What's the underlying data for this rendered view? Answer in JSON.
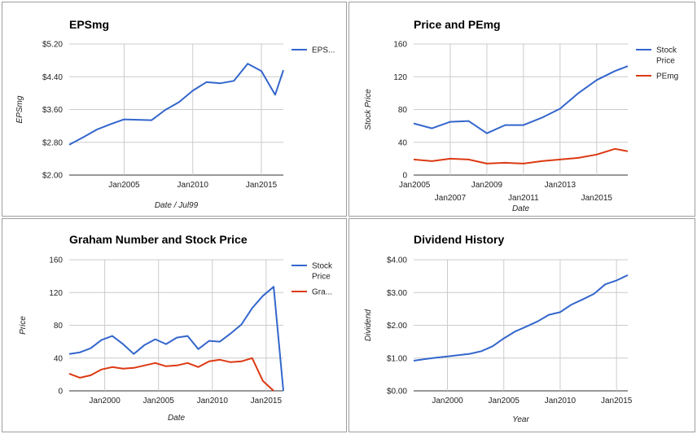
{
  "colors": {
    "blue": "#3366cc",
    "red": "#dc3912",
    "grid": "#cccccc",
    "border": "#9e9e9e"
  },
  "chart_data": [
    {
      "id": "eps",
      "type": "line",
      "title": "EPSmg",
      "xlabel": "Date / Jul99",
      "ylabel": "EPSmg",
      "ylim": [
        2.0,
        5.2
      ],
      "yticks": [
        2.0,
        2.8,
        3.6,
        4.4,
        5.2
      ],
      "ytick_labels": [
        "$2.00",
        "$2.80",
        "$3.60",
        "$4.40",
        "$5.20"
      ],
      "xlim": [
        2001.0,
        2016.6
      ],
      "xticks": [
        {
          "x": 2005,
          "label": "Jan2005",
          "row": 0
        },
        {
          "x": 2010,
          "label": "Jan2010",
          "row": 0
        },
        {
          "x": 2015,
          "label": "Jan2015",
          "row": 0
        }
      ],
      "legend": "right",
      "series": [
        {
          "name": "EPS...",
          "color": "#3366cc",
          "x": [
            2001,
            2002,
            2003,
            2004,
            2005,
            2006,
            2007,
            2008,
            2009,
            2010,
            2011,
            2012,
            2013,
            2014,
            2015,
            2016,
            2016.6
          ],
          "y": [
            2.74,
            2.92,
            3.11,
            3.24,
            3.36,
            3.35,
            3.34,
            3.59,
            3.78,
            4.06,
            4.27,
            4.24,
            4.3,
            4.72,
            4.54,
            3.96,
            4.56
          ]
        }
      ]
    },
    {
      "id": "pe",
      "type": "line",
      "title": "Price and PEmg",
      "xlabel": "Date",
      "ylabel": "Stock Price",
      "ylim": [
        0,
        160
      ],
      "yticks": [
        0,
        40,
        80,
        120,
        160
      ],
      "ytick_labels": [
        "0",
        "40",
        "80",
        "120",
        "160"
      ],
      "xlim": [
        2005.0,
        2016.7
      ],
      "xticks": [
        {
          "x": 2005,
          "label": "Jan2005",
          "row": 0
        },
        {
          "x": 2007,
          "label": "Jan2007",
          "row": 1
        },
        {
          "x": 2009,
          "label": "Jan2009",
          "row": 0
        },
        {
          "x": 2011,
          "label": "Jan2011",
          "row": 1
        },
        {
          "x": 2013,
          "label": "Jan2013",
          "row": 0
        },
        {
          "x": 2015,
          "label": "Jan2015",
          "row": 1
        }
      ],
      "legend": "right",
      "series": [
        {
          "name": "Stock Price",
          "name_lines": [
            "Stock",
            "Price"
          ],
          "color": "#3366cc",
          "x": [
            2005,
            2006,
            2007,
            2008,
            2009,
            2010,
            2011,
            2012,
            2013,
            2014,
            2015,
            2016,
            2016.7
          ],
          "y": [
            63,
            57,
            65,
            66,
            51,
            61,
            61,
            70,
            81,
            100,
            116,
            127,
            133
          ]
        },
        {
          "name": "PEmg",
          "name_lines": [
            "PEmg"
          ],
          "color": "#dc3912",
          "x": [
            2005,
            2006,
            2007,
            2008,
            2009,
            2010,
            2011,
            2012,
            2013,
            2014,
            2015,
            2016,
            2016.7
          ],
          "y": [
            19,
            17,
            20,
            19,
            14,
            15,
            14,
            17,
            19,
            21,
            25,
            32,
            29
          ]
        }
      ]
    },
    {
      "id": "graham",
      "type": "line",
      "title": "Graham Number and Stock Price",
      "xlabel": "Date",
      "ylabel": "Price",
      "ylim": [
        0,
        160
      ],
      "yticks": [
        0,
        40,
        80,
        120,
        160
      ],
      "ytick_labels": [
        "0",
        "40",
        "80",
        "120",
        "160"
      ],
      "xlim": [
        1996.7,
        2016.6
      ],
      "xticks": [
        {
          "x": 2000,
          "label": "Jan2000",
          "row": 0
        },
        {
          "x": 2005,
          "label": "Jan2005",
          "row": 0
        },
        {
          "x": 2010,
          "label": "Jan2010",
          "row": 0
        },
        {
          "x": 2015,
          "label": "Jan2015",
          "row": 0
        }
      ],
      "legend": "right",
      "series": [
        {
          "name": "Stock Price",
          "name_lines": [
            "Stock",
            "Price"
          ],
          "color": "#3366cc",
          "x": [
            1996.7,
            1997.7,
            1998.7,
            1999.7,
            2000.7,
            2001.7,
            2002.7,
            2003.7,
            2004.7,
            2005.7,
            2006.7,
            2007.7,
            2008.7,
            2009.7,
            2010.7,
            2011.7,
            2012.7,
            2013.7,
            2014.7,
            2015.7,
            2016.6
          ],
          "y": [
            45,
            47,
            52,
            62,
            67,
            57,
            45,
            56,
            63,
            57,
            65,
            67,
            51,
            61,
            60,
            70,
            81,
            101,
            116,
            127,
            0
          ]
        },
        {
          "name": "Gra...",
          "name_lines": [
            "Gra..."
          ],
          "color": "#dc3912",
          "x": [
            1996.7,
            1997.7,
            1998.7,
            1999.7,
            2000.7,
            2001.7,
            2002.7,
            2003.7,
            2004.7,
            2005.7,
            2006.7,
            2007.7,
            2008.7,
            2009.7,
            2010.7,
            2011.7,
            2012.7,
            2013.7,
            2014.7,
            2015.7
          ],
          "y": [
            21,
            16,
            19,
            26,
            29,
            27,
            28,
            31,
            34,
            30,
            31,
            34,
            29,
            36,
            38,
            35,
            36,
            40,
            12,
            0
          ]
        }
      ]
    },
    {
      "id": "dividend",
      "type": "line",
      "title": "Dividend History",
      "xlabel": "Year",
      "ylabel": "Dividend",
      "ylim": [
        0,
        4
      ],
      "yticks": [
        0,
        1,
        2,
        3,
        4
      ],
      "ytick_labels": [
        "$0.00",
        "$1.00",
        "$2.00",
        "$3.00",
        "$4.00"
      ],
      "xlim": [
        1997.0,
        2016.0
      ],
      "xticks": [
        {
          "x": 2000,
          "label": "Jan2000",
          "row": 0
        },
        {
          "x": 2005,
          "label": "Jan2005",
          "row": 0
        },
        {
          "x": 2010,
          "label": "Jan2010",
          "row": 0
        },
        {
          "x": 2015,
          "label": "Jan2015",
          "row": 0
        }
      ],
      "legend": "none",
      "series": [
        {
          "name": "",
          "color": "#3366cc",
          "x": [
            1997,
            1998,
            1999,
            2000,
            2001,
            2002,
            2003,
            2004,
            2005,
            2006,
            2007,
            2008,
            2009,
            2010,
            2011,
            2012,
            2013,
            2014,
            2015,
            2016
          ],
          "y": [
            0.92,
            0.97,
            1.01,
            1.05,
            1.09,
            1.13,
            1.21,
            1.36,
            1.6,
            1.81,
            1.96,
            2.12,
            2.32,
            2.4,
            2.63,
            2.79,
            2.96,
            3.25,
            3.37,
            3.53
          ]
        }
      ]
    }
  ]
}
